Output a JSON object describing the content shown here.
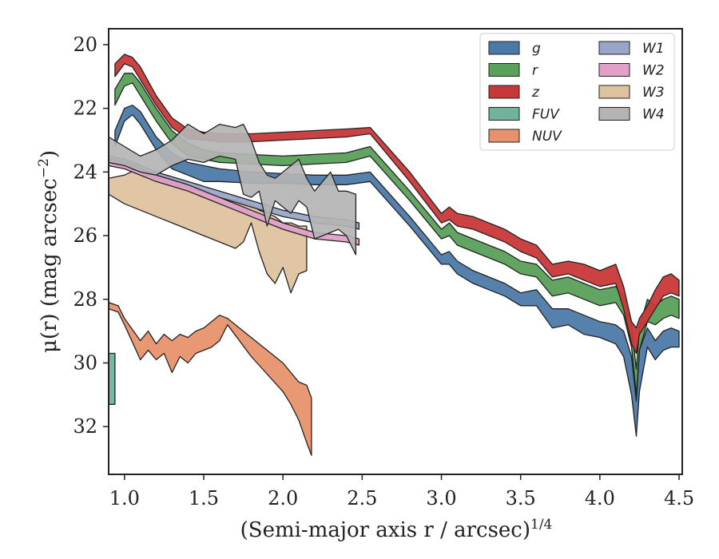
{
  "chart_data": {
    "type": "area",
    "xlabel": "(Semi-major axis r / arcsec)",
    "xlabel_superscript": "1/4",
    "ylabel": "μ(r) (mag arcsec",
    "ylabel_superscript": "−2",
    "ylabel_close": ")",
    "xlim": [
      0.9,
      4.52
    ],
    "ylim": [
      33.5,
      19.5
    ],
    "y_inverted": true,
    "xticks": [
      1.0,
      1.5,
      2.0,
      2.5,
      3.0,
      3.5,
      4.0,
      4.5
    ],
    "xtick_labels": [
      "1.0",
      "1.5",
      "2.0",
      "2.5",
      "3.0",
      "3.5",
      "4.0",
      "4.5"
    ],
    "yticks": [
      20,
      22,
      24,
      26,
      28,
      30,
      32
    ],
    "ytick_labels": [
      "20",
      "22",
      "24",
      "26",
      "28",
      "30",
      "32"
    ],
    "grid": false,
    "legend_position": "top-right",
    "legend_columns": 2,
    "series": [
      {
        "name": "g",
        "color": "#4c7aa8",
        "x": [
          0.94,
          1.0,
          1.05,
          1.1,
          1.2,
          1.3,
          1.4,
          1.5,
          1.6,
          1.8,
          2.0,
          2.2,
          2.4,
          2.55,
          2.8,
          3.0,
          3.05,
          3.1,
          3.2,
          3.4,
          3.5,
          3.6,
          3.7,
          3.8,
          3.9,
          4.0,
          4.1,
          4.15,
          4.2,
          4.23,
          4.25,
          4.3,
          4.35,
          4.4,
          4.45,
          4.5
        ],
        "lower": [
          22.7,
          22.0,
          21.9,
          22.1,
          22.9,
          23.4,
          23.7,
          23.8,
          23.9,
          24.0,
          24.05,
          24.1,
          24.1,
          24.0,
          25.4,
          26.6,
          26.5,
          26.8,
          27.1,
          27.5,
          27.8,
          27.7,
          28.3,
          28.3,
          28.5,
          28.7,
          28.8,
          29.0,
          29.8,
          31.2,
          29.6,
          28.9,
          29.3,
          29.0,
          28.9,
          29.0
        ],
        "upper": [
          23.2,
          22.4,
          22.2,
          22.5,
          23.3,
          23.9,
          24.1,
          24.3,
          24.3,
          24.35,
          24.35,
          24.4,
          24.4,
          24.3,
          25.7,
          26.9,
          26.9,
          27.2,
          27.5,
          27.9,
          28.2,
          28.2,
          28.9,
          28.8,
          29.1,
          29.2,
          29.4,
          29.8,
          31.0,
          32.3,
          30.9,
          29.5,
          29.9,
          29.6,
          29.5,
          29.5
        ]
      },
      {
        "name": "r",
        "color": "#5aa05a",
        "x": [
          0.94,
          1.0,
          1.05,
          1.1,
          1.2,
          1.3,
          1.4,
          1.5,
          1.6,
          1.8,
          2.0,
          2.2,
          2.4,
          2.55,
          2.8,
          3.0,
          3.05,
          3.1,
          3.2,
          3.4,
          3.5,
          3.6,
          3.7,
          3.8,
          3.9,
          4.0,
          4.1,
          4.15,
          4.2,
          4.23,
          4.25,
          4.3,
          4.35,
          4.4,
          4.45,
          4.5
        ],
        "lower": [
          21.4,
          20.9,
          20.9,
          21.2,
          22.0,
          22.7,
          23.1,
          23.3,
          23.4,
          23.45,
          23.5,
          23.45,
          23.4,
          23.2,
          24.6,
          25.8,
          25.6,
          25.9,
          26.1,
          26.5,
          26.8,
          26.9,
          27.4,
          27.3,
          27.5,
          27.7,
          27.6,
          27.9,
          28.8,
          30.2,
          28.9,
          28.0,
          28.2,
          28.0,
          27.9,
          28.0
        ],
        "upper": [
          21.9,
          21.3,
          21.2,
          21.6,
          22.4,
          23.1,
          23.5,
          23.6,
          23.7,
          23.75,
          23.8,
          23.75,
          23.7,
          23.5,
          24.9,
          26.1,
          26.0,
          26.3,
          26.5,
          26.9,
          27.2,
          27.3,
          27.9,
          27.8,
          28.0,
          28.2,
          28.1,
          28.5,
          29.5,
          31.0,
          29.6,
          28.7,
          28.8,
          28.6,
          28.5,
          28.6
        ]
      },
      {
        "name": "z",
        "color": "#c93838",
        "x": [
          0.94,
          1.0,
          1.05,
          1.1,
          1.2,
          1.3,
          1.4,
          1.5,
          1.6,
          1.8,
          2.0,
          2.2,
          2.4,
          2.55,
          2.8,
          3.0,
          3.05,
          3.1,
          3.2,
          3.4,
          3.5,
          3.6,
          3.7,
          3.8,
          3.9,
          4.0,
          4.1,
          4.15,
          4.2,
          4.23,
          4.25,
          4.3,
          4.35,
          4.4,
          4.45,
          4.5
        ],
        "lower": [
          20.6,
          20.3,
          20.4,
          20.7,
          21.6,
          22.3,
          22.65,
          22.75,
          22.8,
          22.8,
          22.75,
          22.7,
          22.65,
          22.6,
          24.0,
          25.3,
          25.1,
          25.3,
          25.4,
          25.8,
          26.1,
          26.3,
          26.9,
          26.8,
          26.9,
          27.1,
          26.9,
          27.6,
          28.7,
          28.9,
          28.6,
          28.2,
          27.7,
          27.3,
          27.2,
          27.4
        ],
        "upper": [
          21.0,
          20.6,
          20.7,
          21.1,
          21.9,
          22.6,
          22.95,
          23.0,
          23.05,
          23.05,
          23.0,
          22.95,
          22.9,
          22.8,
          24.3,
          25.6,
          25.5,
          25.7,
          25.8,
          26.2,
          26.5,
          26.7,
          27.3,
          27.2,
          27.4,
          27.6,
          27.5,
          28.3,
          29.4,
          29.7,
          29.1,
          28.7,
          28.3,
          27.9,
          27.8,
          27.9
        ]
      },
      {
        "name": "FUV",
        "color": "#6fb49a",
        "x": [
          0.9,
          0.94
        ],
        "lower": [
          29.7,
          29.7
        ],
        "upper": [
          31.3,
          31.3
        ]
      },
      {
        "name": "NUV",
        "color": "#e8926d",
        "x": [
          0.9,
          0.96,
          1.0,
          1.1,
          1.15,
          1.2,
          1.25,
          1.3,
          1.35,
          1.4,
          1.45,
          1.5,
          1.55,
          1.6,
          1.65,
          1.8,
          2.0,
          2.05,
          2.1,
          2.15,
          2.18
        ],
        "lower": [
          28.1,
          28.2,
          28.6,
          29.3,
          29.0,
          29.4,
          29.1,
          29.3,
          29.1,
          29.2,
          29.0,
          28.9,
          28.7,
          28.5,
          28.6,
          29.2,
          30.0,
          30.3,
          30.6,
          30.7,
          31.1
        ],
        "upper": [
          28.3,
          28.4,
          28.8,
          29.9,
          29.6,
          29.9,
          29.7,
          30.3,
          29.8,
          30.0,
          29.7,
          29.6,
          29.5,
          29.3,
          28.8,
          29.8,
          30.9,
          31.3,
          31.8,
          32.5,
          32.9
        ]
      },
      {
        "name": "W1",
        "color": "#9aa6c8",
        "x": [
          0.9,
          1.0,
          1.2,
          1.4,
          1.6,
          1.8,
          2.0,
          2.2,
          2.4,
          2.48
        ],
        "lower": [
          23.5,
          23.6,
          24.0,
          24.3,
          24.6,
          24.9,
          25.2,
          25.4,
          25.5,
          25.6
        ],
        "upper": [
          23.7,
          23.8,
          24.2,
          24.5,
          24.8,
          25.1,
          25.4,
          25.6,
          25.7,
          25.8
        ]
      },
      {
        "name": "W2",
        "color": "#e0a0c8",
        "x": [
          0.9,
          1.0,
          1.2,
          1.4,
          1.6,
          1.8,
          2.0,
          2.2,
          2.4,
          2.48
        ],
        "lower": [
          23.6,
          23.7,
          24.1,
          24.4,
          24.8,
          25.2,
          25.6,
          25.9,
          26.0,
          26.1
        ],
        "upper": [
          23.8,
          23.9,
          24.3,
          24.6,
          25.0,
          25.4,
          25.8,
          26.1,
          26.2,
          26.3
        ]
      },
      {
        "name": "W3",
        "color": "#dfc3a0",
        "x": [
          0.9,
          1.0,
          1.1,
          1.2,
          1.3,
          1.4,
          1.5,
          1.6,
          1.7,
          1.75,
          1.8,
          1.85,
          1.9,
          1.95,
          2.0,
          2.05,
          2.1,
          2.15
        ],
        "lower": [
          24.2,
          24.1,
          23.85,
          24.0,
          24.2,
          24.4,
          24.6,
          24.8,
          24.9,
          24.95,
          25.0,
          25.2,
          25.3,
          25.4,
          25.6,
          25.6,
          25.7,
          25.7
        ],
        "upper": [
          24.7,
          25.0,
          25.2,
          25.4,
          25.6,
          25.8,
          26.0,
          26.2,
          26.4,
          26.2,
          25.6,
          26.5,
          27.2,
          27.5,
          27.0,
          27.8,
          27.2,
          27.1
        ]
      },
      {
        "name": "W4",
        "color": "#b4b4b4",
        "x": [
          0.9,
          1.0,
          1.1,
          1.2,
          1.3,
          1.4,
          1.5,
          1.6,
          1.7,
          1.75,
          1.8,
          1.85,
          1.9,
          1.95,
          2.0,
          2.05,
          2.1,
          2.15,
          2.2,
          2.25,
          2.3,
          2.35,
          2.4,
          2.46
        ],
        "lower": [
          22.9,
          23.2,
          23.5,
          23.3,
          23.0,
          22.5,
          22.8,
          22.5,
          22.6,
          22.5,
          23.0,
          23.7,
          24.1,
          24.2,
          24.0,
          23.8,
          23.6,
          24.2,
          24.6,
          24.3,
          24.0,
          24.6,
          24.6,
          24.7
        ],
        "upper": [
          23.7,
          23.8,
          24.0,
          24.1,
          23.8,
          23.6,
          23.7,
          23.5,
          23.6,
          24.7,
          24.8,
          24.6,
          25.7,
          24.9,
          25.1,
          25.3,
          24.9,
          25.1,
          26.1,
          26.0,
          25.9,
          25.8,
          26.0,
          26.6
        ]
      }
    ]
  }
}
